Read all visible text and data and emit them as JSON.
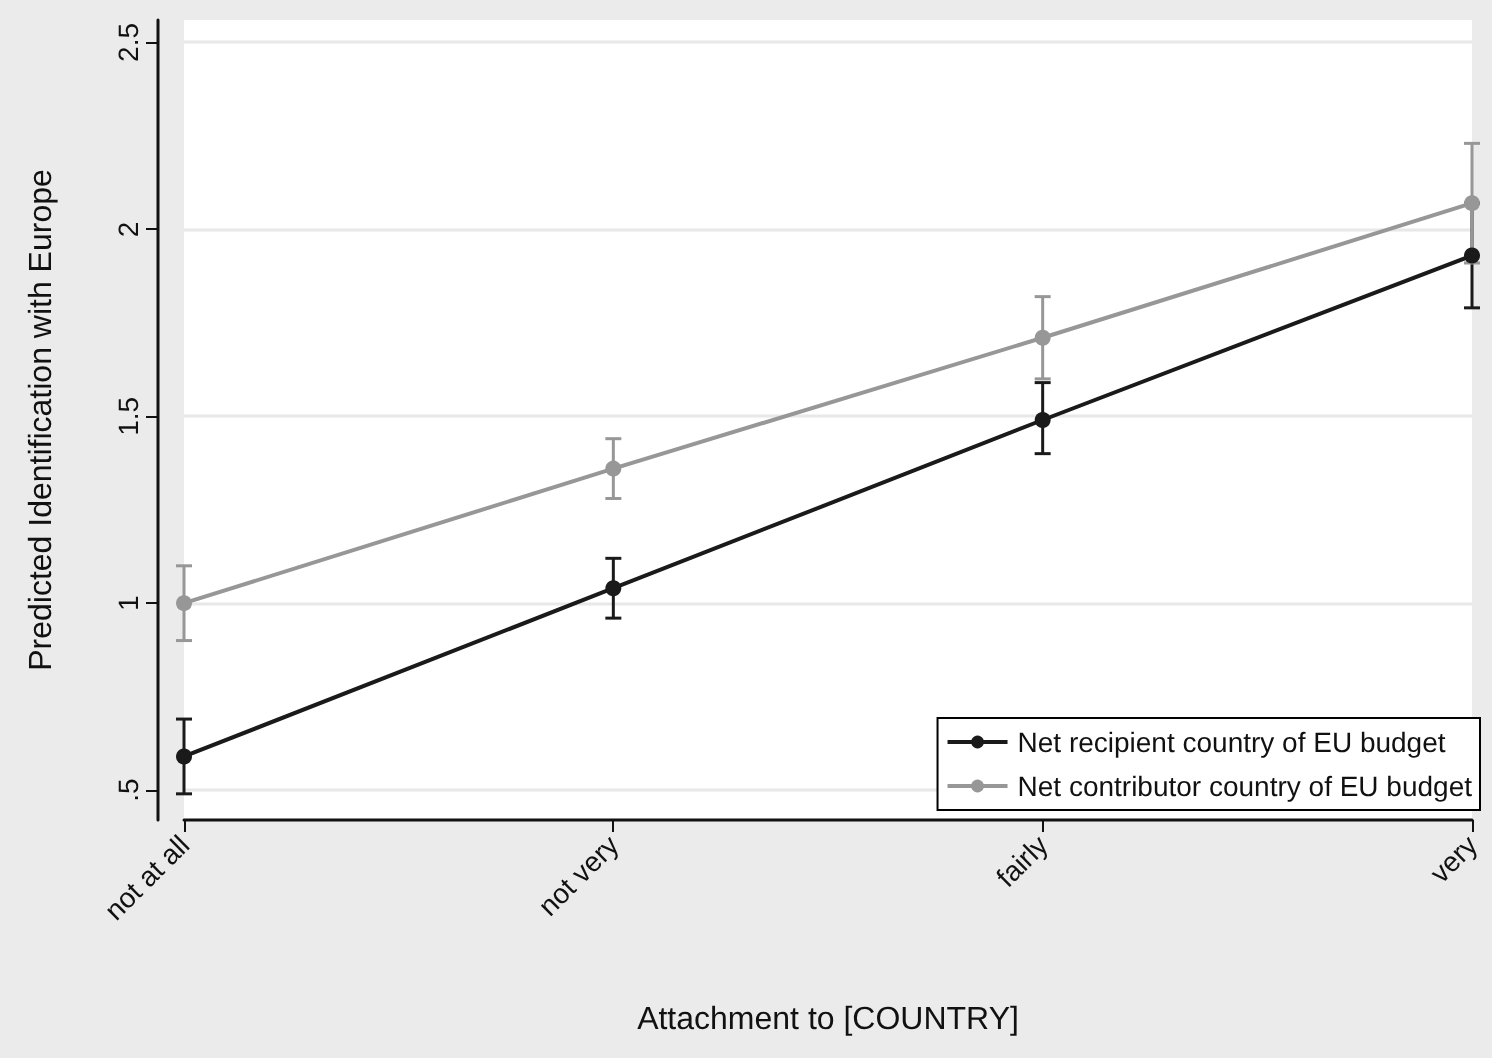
{
  "chart_data": {
    "type": "line",
    "xlabel": "Attachment to [COUNTRY]",
    "ylabel": "Predicted Identification with Europe",
    "categories": [
      "not at all",
      "not very",
      "fairly",
      "very"
    ],
    "series": [
      {
        "name": "Net recipient country of EU budget",
        "color": "#1a1a1a",
        "values": [
          0.59,
          1.04,
          1.49,
          1.93
        ],
        "errors": [
          [
            0.49,
            0.69
          ],
          [
            0.96,
            1.12
          ],
          [
            1.4,
            1.59
          ],
          [
            1.79,
            2.07
          ]
        ]
      },
      {
        "name": "Net contributor country of EU budget",
        "color": "#979797",
        "values": [
          1.0,
          1.36,
          1.71,
          2.07
        ],
        "errors": [
          [
            0.9,
            1.1
          ],
          [
            1.28,
            1.44
          ],
          [
            1.6,
            1.82
          ],
          [
            1.91,
            2.23
          ]
        ]
      }
    ],
    "ylim": [
      0.42,
      2.56
    ],
    "yticks": [
      {
        "value": 0.5,
        "label": ".5"
      },
      1,
      1.5,
      2,
      2.5
    ],
    "grid": "y",
    "legend": "bottom right",
    "marker": "circle",
    "line_style": "solid"
  }
}
